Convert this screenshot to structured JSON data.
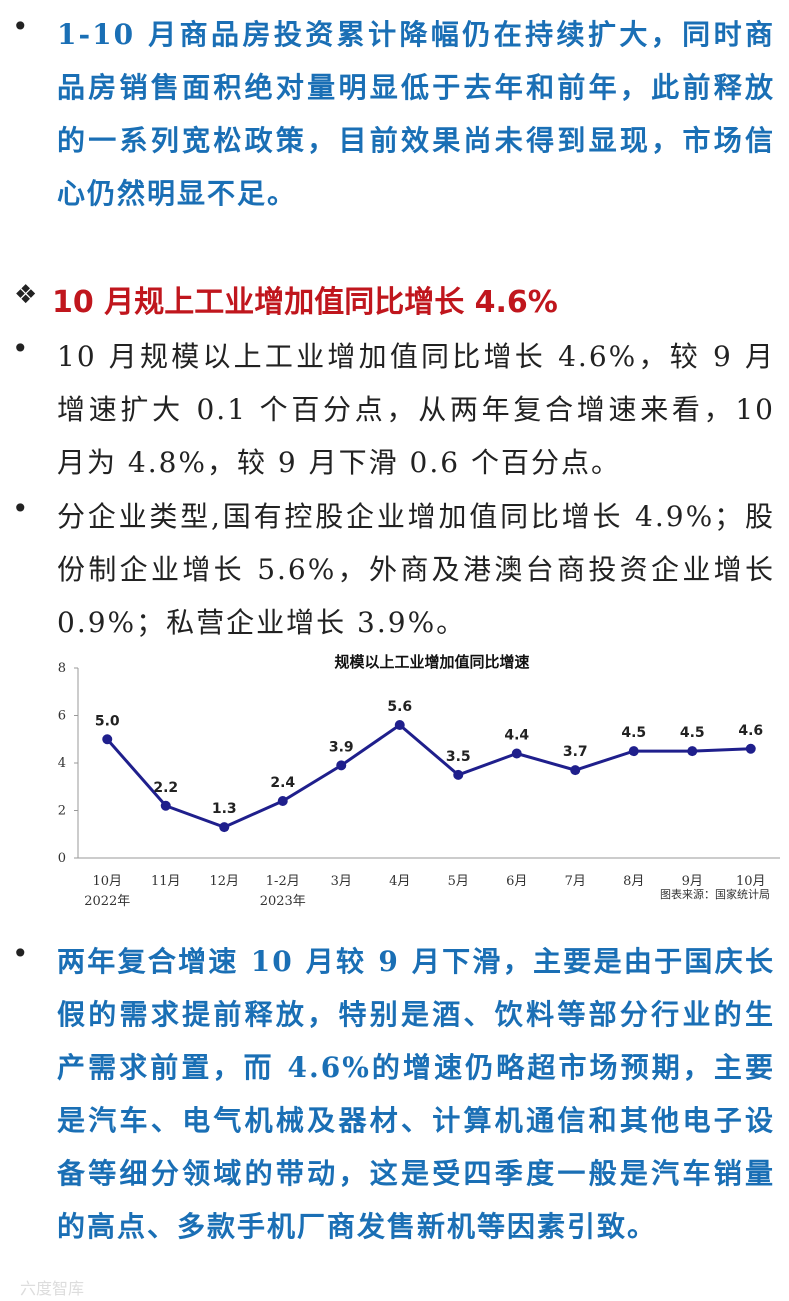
{
  "bullet_1": "1-10 月商品房投资累计降幅仍在持续扩大，同时商品房销售面积绝对量明显低于去年和前年，此前释放的一系列宽松政策，目前效果尚未得到显现，市场信心仍然明显不足。",
  "heading": "10 月规上工业增加值同比增长 4.6%",
  "bullet_2": "10 月规模以上工业增加值同比增长 4.6%，较 9 月增速扩大 0.1 个百分点，从两年复合增速来看，10 月为 4.8%，较 9 月下滑 0.6 个百分点。",
  "bullet_3": "分企业类型,国有控股企业增加值同比增长 4.9%；股份制企业增长 5.6%，外商及港澳台商投资企业增长 0.9%；私营企业增长 3.9%。",
  "chart_data": {
    "type": "line",
    "title": "规模以上工业增加值同比增速",
    "categories": [
      "10月",
      "11月",
      "12月",
      "1-2月",
      "3月",
      "4月",
      "5月",
      "6月",
      "7月",
      "8月",
      "9月",
      "10月"
    ],
    "period_labels": [
      "2022年",
      null,
      null,
      "2023年",
      null,
      null,
      null,
      null,
      null,
      null,
      null,
      null
    ],
    "values": [
      5.0,
      2.2,
      1.3,
      2.4,
      3.9,
      5.6,
      3.5,
      4.4,
      3.7,
      4.5,
      4.5,
      4.6
    ],
    "value_labels": [
      "5.0",
      "2.2",
      "1.3",
      "2.4",
      "3.9",
      "5.6",
      "3.5",
      "4.4",
      "3.7",
      "4.5",
      "4.5",
      "4.6"
    ],
    "color": "#1f1f8c",
    "ylim": [
      0,
      8
    ],
    "yticks": [
      0,
      2,
      4,
      6,
      8
    ],
    "grid": false,
    "source": "图表来源：国家统计局"
  },
  "bullet_4": "两年复合增速 10 月较 9 月下滑，主要是由于国庆长假的需求提前释放，特别是酒、饮料等部分行业的生产需求前置，而 4.6%的增速仍略超市场预期，主要是汽车、电气机械及器材、计算机通信和其他电子设备等细分领域的带动，这是受四季度一般是汽车销量的高点、多款手机厂商发售新机等因素引致。",
  "watermark": "六度智库"
}
